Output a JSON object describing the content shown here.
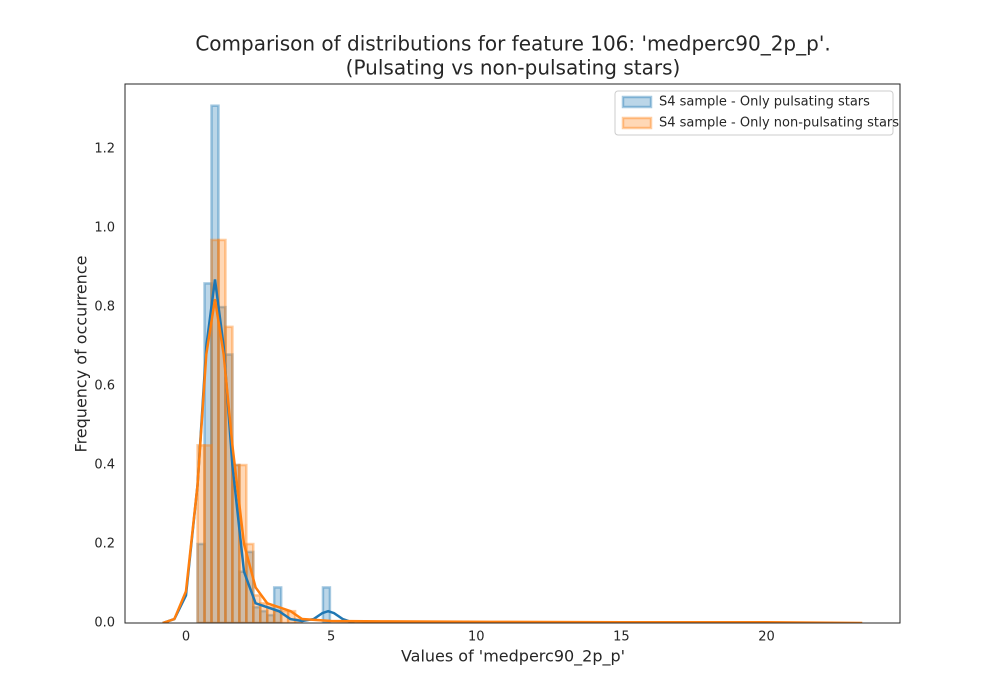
{
  "chart_data": {
    "type": "histogram",
    "title": "Comparison of distributions for feature 106: 'medperc90_2p_p'.",
    "subtitle": "(Pulsating vs non-pulsating stars)",
    "x_label": "Values of 'medperc90_2p_p'",
    "y_label": "Frequency of occurrence",
    "xlim": [
      -2.1,
      24.6
    ],
    "ylim": [
      0,
      1.365
    ],
    "xticks": [
      0,
      5,
      10,
      15,
      20
    ],
    "yticks": [
      {
        "value": 0,
        "label": "0.0"
      },
      0.2,
      0.4,
      0.6,
      0.8,
      {
        "value": 1,
        "label": "1.0"
      },
      1.2
    ],
    "grid": false,
    "legend": "upper right",
    "series": [
      {
        "name": "S4 sample - Only pulsating stars",
        "color": "#1f77b4",
        "bins": [
          0.4,
          0.64,
          0.88,
          1.12,
          1.36,
          1.6,
          1.84,
          2.08,
          2.32,
          2.56,
          2.8,
          3.04,
          3.28,
          3.52,
          3.76,
          4.0,
          4.24,
          4.48,
          4.72,
          4.96
        ],
        "values": [
          0.2,
          0.86,
          1.31,
          0.8,
          0.68,
          0.4,
          0.13,
          0.18,
          0.04,
          0.03,
          0.02,
          0.09,
          0,
          0,
          0,
          0,
          0,
          0,
          0.09
        ],
        "kde": {
          "x": [
            -0.8,
            -0.4,
            0,
            0.4,
            0.7,
            1.0,
            1.3,
            1.6,
            2.0,
            2.4,
            2.8,
            3.2,
            3.6,
            4.0,
            4.4,
            4.7,
            4.9,
            5.1,
            5.4,
            5.8
          ],
          "y": [
            0,
            0.01,
            0.07,
            0.35,
            0.7,
            0.87,
            0.7,
            0.4,
            0.13,
            0.05,
            0.04,
            0.03,
            0.01,
            0.005,
            0.01,
            0.025,
            0.03,
            0.025,
            0.01,
            0
          ]
        }
      },
      {
        "name": "S4 sample - Only non-pulsating stars",
        "color": "#ff7f0e",
        "bins": [
          0.4,
          0.64,
          0.88,
          1.12,
          1.36,
          1.6,
          1.84,
          2.08,
          2.32,
          2.56,
          2.8,
          3.04,
          3.28,
          3.52,
          3.76,
          4.0
        ],
        "values": [
          0.45,
          0.45,
          0.97,
          0.97,
          0.75,
          0.4,
          0.4,
          0.2,
          0.07,
          0.05,
          0.04,
          0.03,
          0.03,
          0.03,
          0.01
        ],
        "kde": {
          "x": [
            -0.8,
            -0.4,
            0,
            0.4,
            0.7,
            1.0,
            1.3,
            1.6,
            2.0,
            2.4,
            2.8,
            3.2,
            3.6,
            4.0,
            5,
            7,
            10.5,
            15,
            20,
            23.3
          ],
          "y": [
            0,
            0.01,
            0.08,
            0.35,
            0.68,
            0.82,
            0.68,
            0.45,
            0.2,
            0.09,
            0.05,
            0.04,
            0.03,
            0.01,
            0.005,
            0.004,
            0.003,
            0.002,
            0.002,
            0
          ]
        }
      }
    ]
  }
}
